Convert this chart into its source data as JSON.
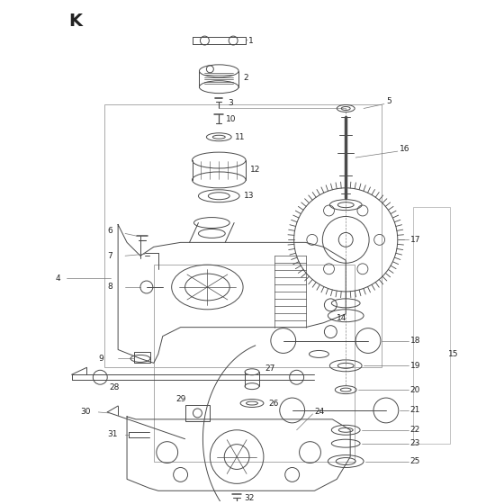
{
  "title": "K",
  "bg_color": "#ffffff",
  "lc": "#4a4a4a",
  "lc_light": "#888888",
  "lc_box": "#aaaaaa",
  "figsize": [
    5.6,
    5.6
  ],
  "dpi": 100
}
